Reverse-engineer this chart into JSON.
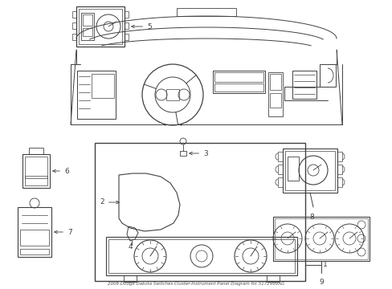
{
  "title": "2008 Dodge Dakota Switches Cluster-Instrument Panel Diagram for 5172999AG",
  "background_color": "#ffffff",
  "line_color": "#404040",
  "fig_width": 4.89,
  "fig_height": 3.6,
  "dpi": 100
}
